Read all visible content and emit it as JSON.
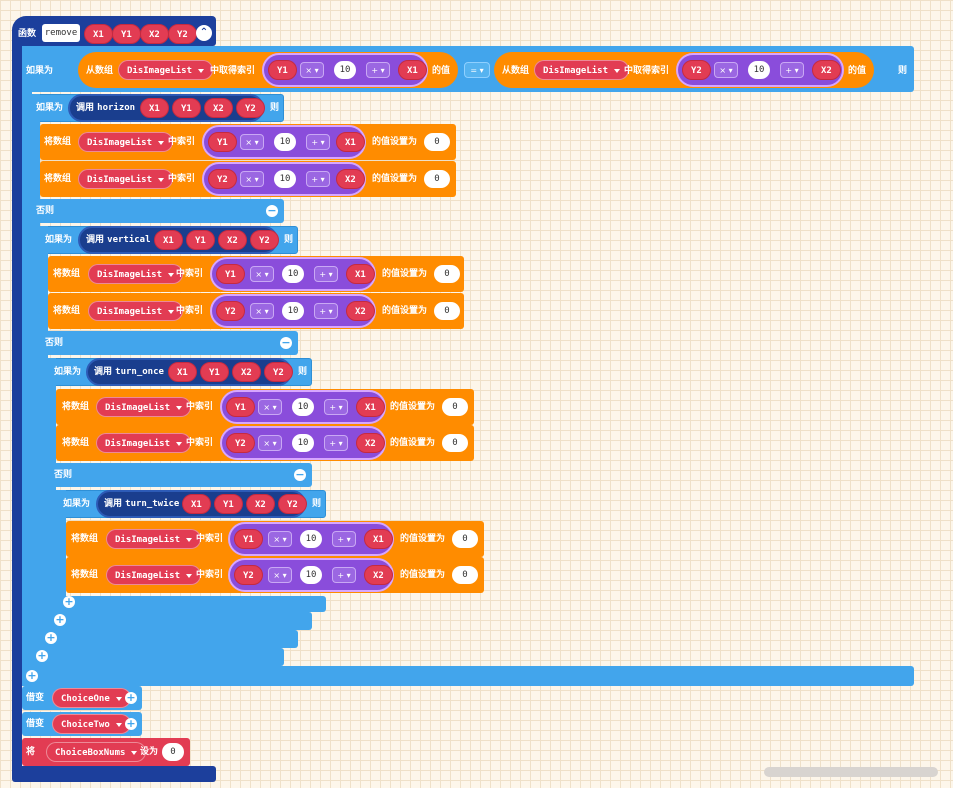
{
  "func": {
    "keyword": "函数",
    "name": "remove",
    "params": [
      "X1",
      "Y1",
      "X2",
      "Y2"
    ]
  },
  "kw": {
    "if": "如果为",
    "then": "则",
    "else": "否则",
    "call": "调用",
    "set_array": "将数组",
    "at_index": "中索引",
    "set_value_to": "的值设置为",
    "from_array": "从数组",
    "get_index": "中取得索引",
    "value_of": "的值",
    "eq": "=",
    "declare": "借变",
    "set": "将",
    "set_to": "设为"
  },
  "array": "DisImageList",
  "ops": {
    "mul": "×",
    "add": "+"
  },
  "ten": "10",
  "zero": "0",
  "calls": [
    "horizon",
    "vertical",
    "turn_once",
    "turn_twice"
  ],
  "vars": [
    "ChoiceOne",
    "ChoiceTwo"
  ],
  "setvar": "ChoiceBoxNums"
}
